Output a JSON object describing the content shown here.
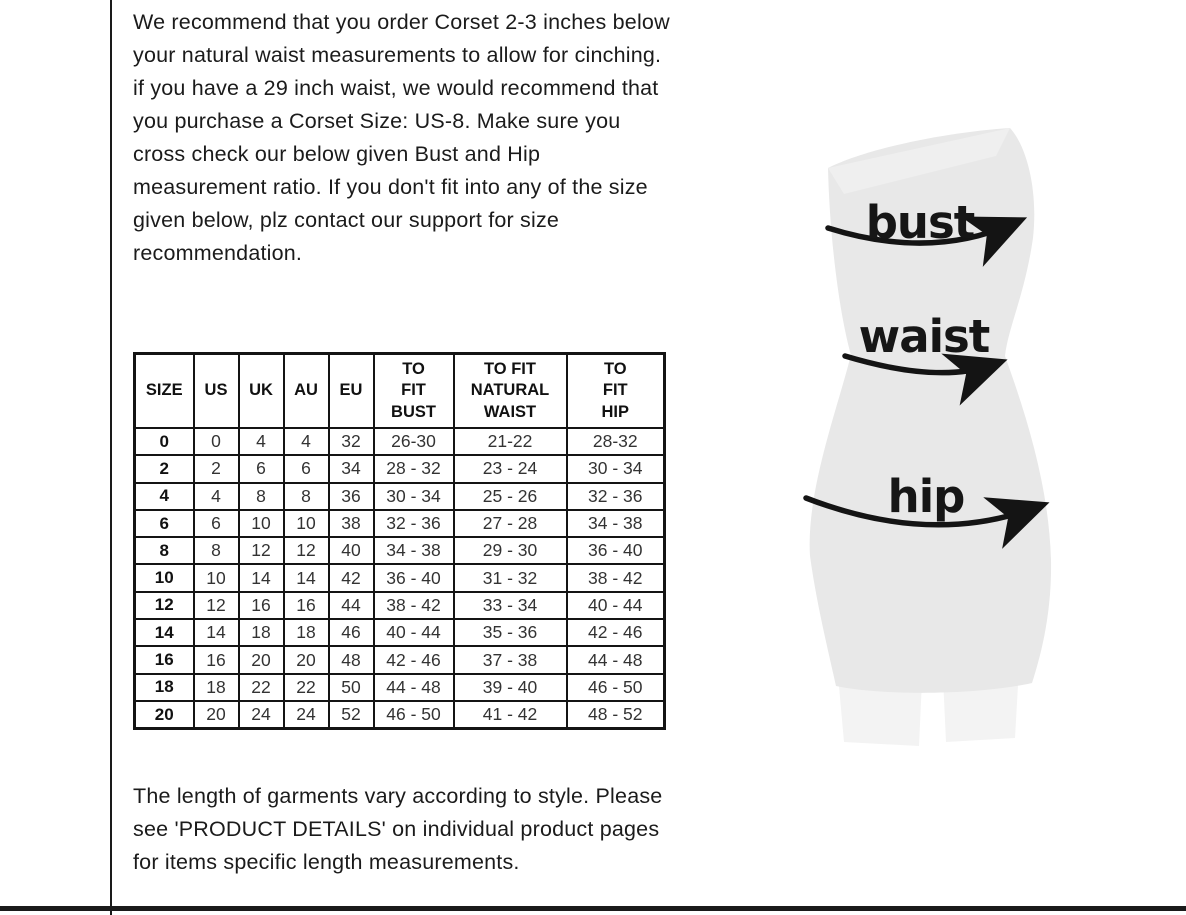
{
  "page": {
    "intro_text": "We recommend that you order Corset 2-3 inches below your natural waist measurements to allow for cinching. if you have a 29 inch waist, we would recommend that you purchase a Corset Size: US-8. Make sure you cross check our below given Bust and Hip measurement ratio. If you don't fit into any of the size given below, plz contact our support for size recommendation.",
    "footer_text": "The length of garments vary according to style. Please see 'PRODUCT DETAILS'  on individual product pages for items specific length measurements."
  },
  "size_table": {
    "columns": [
      "SIZE",
      "US",
      "UK",
      "AU",
      "EU",
      "TO\nFIT\nBUST",
      "TO FIT\nNATURAL\nWAIST",
      "TO\nFIT\nHIP"
    ],
    "rows": [
      [
        "0",
        "0",
        "4",
        "4",
        "32",
        "26-30",
        "21-22",
        "28-32"
      ],
      [
        "2",
        "2",
        "6",
        "6",
        "34",
        "28 - 32",
        "23 - 24",
        "30 - 34"
      ],
      [
        "4",
        "4",
        "8",
        "8",
        "36",
        "30 - 34",
        "25 - 26",
        "32 - 36"
      ],
      [
        "6",
        "6",
        "10",
        "10",
        "38",
        "32 - 36",
        "27 - 28",
        "34 - 38"
      ],
      [
        "8",
        "8",
        "12",
        "12",
        "40",
        "34 - 38",
        "29 - 30",
        "36 - 40"
      ],
      [
        "10",
        "10",
        "14",
        "14",
        "42",
        "36 - 40",
        "31 - 32",
        "38 - 42"
      ],
      [
        "12",
        "12",
        "16",
        "16",
        "44",
        "38 - 42",
        "33 - 34",
        "40 - 44"
      ],
      [
        "14",
        "14",
        "18",
        "18",
        "46",
        "40 - 44",
        "35 - 36",
        "42 - 46"
      ],
      [
        "16",
        "16",
        "20",
        "20",
        "48",
        "42 - 46",
        "37 - 38",
        "44 - 48"
      ],
      [
        "18",
        "18",
        "22",
        "22",
        "50",
        "44 - 48",
        "39 - 40",
        "46 - 50"
      ],
      [
        "20",
        "20",
        "24",
        "24",
        "52",
        "46 - 50",
        "41 - 42",
        "48 - 52"
      ]
    ]
  },
  "diagram": {
    "labels": {
      "bust": "bust",
      "waist": "waist",
      "hip": "hip"
    },
    "colors": {
      "body_fill": "#e8e8e8",
      "body_highlight": "#f0f0f0",
      "legs_fill": "#f3f3f3",
      "arrow": "#141414",
      "divider": "#1a1a1a"
    }
  }
}
